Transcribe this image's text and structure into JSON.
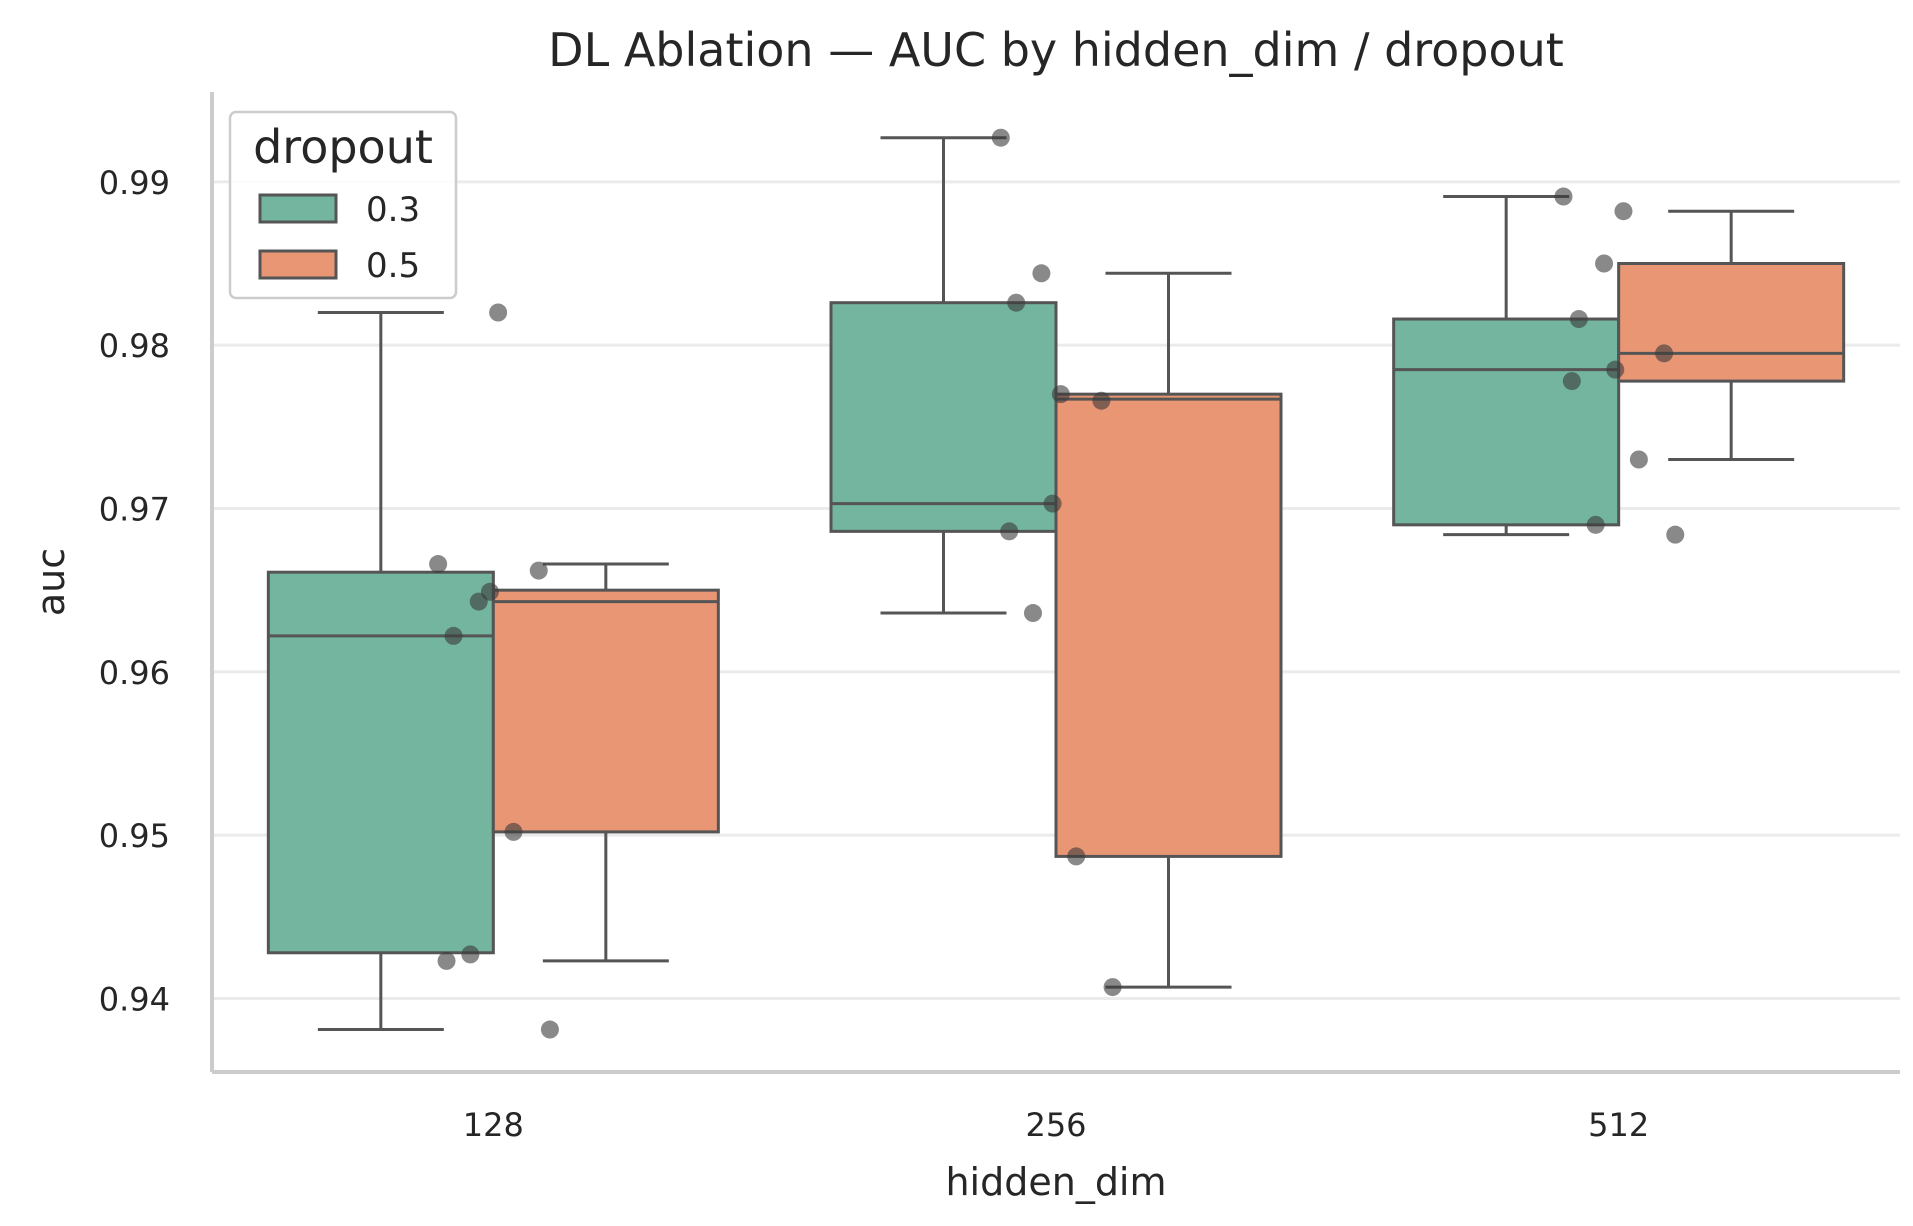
{
  "chart_data": {
    "type": "box",
    "title": "DL Ablation — AUC by hidden_dim / dropout",
    "xlabel": "hidden_dim",
    "ylabel": "auc",
    "categories": [
      "128",
      "256",
      "512"
    ],
    "ylim": [
      0.9355,
      0.9955
    ],
    "yticks": [
      0.94,
      0.95,
      0.96,
      0.97,
      0.98,
      0.99
    ],
    "ytick_labels": [
      "0.94",
      "0.95",
      "0.96",
      "0.97",
      "0.98",
      "0.99"
    ],
    "grid": "horizontal",
    "legend": {
      "title": "dropout",
      "position": "top-left"
    },
    "series": [
      {
        "name": "0.3",
        "color": "#73b59f",
        "boxes": [
          {
            "category": "128",
            "whisker_low": 0.9381,
            "q1": 0.9428,
            "median": 0.9622,
            "q3": 0.9661,
            "whisker_high": 0.982
          },
          {
            "category": "256",
            "whisker_low": 0.9636,
            "q1": 0.9686,
            "median": 0.9703,
            "q3": 0.9826,
            "whisker_high": 0.9927
          },
          {
            "category": "512",
            "whisker_low": 0.9684,
            "q1": 0.969,
            "median": 0.9785,
            "q3": 0.9816,
            "whisker_high": 0.9891
          }
        ],
        "points": [
          {
            "category": "128",
            "values": [
              0.9666,
              0.9643,
              0.9622,
              0.9649,
              0.9423,
              0.9427
            ]
          },
          {
            "category": "256",
            "values": [
              0.9927,
              0.9844,
              0.9826,
              0.9703,
              0.9686,
              0.9636
            ]
          },
          {
            "category": "512",
            "values": [
              0.9891,
              0.985,
              0.9816,
              0.9785,
              0.9778,
              0.969
            ]
          }
        ]
      },
      {
        "name": "0.5",
        "color": "#e99675",
        "boxes": [
          {
            "category": "128",
            "whisker_low": 0.9423,
            "q1": 0.9502,
            "median": 0.9643,
            "q3": 0.965,
            "whisker_high": 0.9666
          },
          {
            "category": "256",
            "whisker_low": 0.9407,
            "q1": 0.9487,
            "median": 0.9767,
            "q3": 0.977,
            "whisker_high": 0.9844
          },
          {
            "category": "512",
            "whisker_low": 0.973,
            "q1": 0.9778,
            "median": 0.9795,
            "q3": 0.985,
            "whisker_high": 0.9882
          }
        ],
        "points": [
          {
            "category": "128",
            "values": [
              0.982,
              0.9662,
              0.9502,
              0.9381
            ]
          },
          {
            "category": "256",
            "values": [
              0.977,
              0.9766,
              0.9487,
              0.9407
            ]
          },
          {
            "category": "512",
            "values": [
              0.9882,
              0.9795,
              0.973,
              0.9684
            ]
          }
        ]
      }
    ]
  }
}
